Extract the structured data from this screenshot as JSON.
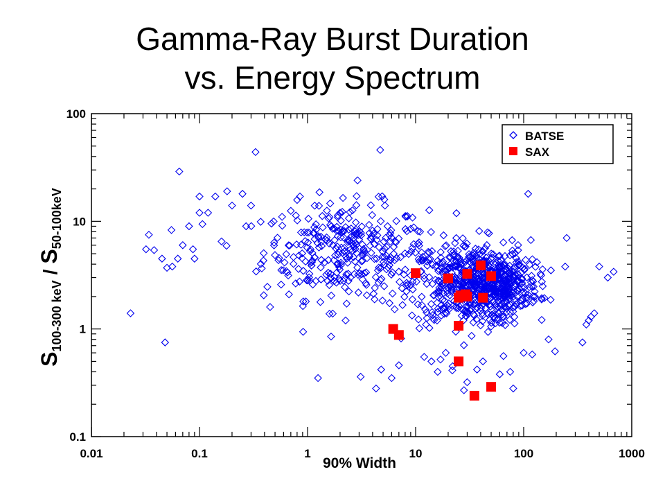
{
  "slide": {
    "title_line1": "Gamma-Ray Burst Duration",
    "title_line2": "vs. Energy Spectrum"
  },
  "chart_data": {
    "type": "scatter",
    "x_scale": "log",
    "y_scale": "log",
    "xlim": [
      0.01,
      1000
    ],
    "ylim": [
      0.1,
      100
    ],
    "xlabel": "90% Width",
    "ylabel": {
      "s1": "S",
      "sub1": "100-300 keV",
      "slash": "/",
      "s2": "S",
      "sub2": "50-100keV"
    },
    "x_ticks": [
      {
        "value": 0.01,
        "label": "0.01"
      },
      {
        "value": 0.1,
        "label": "0.1"
      },
      {
        "value": 1,
        "label": "1"
      },
      {
        "value": 10,
        "label": "10"
      },
      {
        "value": 100,
        "label": "100"
      },
      {
        "value": 1000,
        "label": "1000"
      }
    ],
    "y_ticks": [
      {
        "value": 0.1,
        "label": "0.1"
      },
      {
        "value": 1,
        "label": "1"
      },
      {
        "value": 10,
        "label": "10"
      },
      {
        "value": 100,
        "label": "100"
      }
    ],
    "legend_position": "top-right",
    "series": [
      {
        "name": "BATSE",
        "marker": "open-diamond",
        "color": "#0000ee",
        "x": [
          0.023,
          0.032,
          0.034,
          0.048,
          0.05,
          0.056,
          0.063,
          0.065,
          0.087,
          0.09,
          0.1,
          0.16,
          0.18,
          0.33,
          0.45,
          1.25,
          1.65,
          2.25,
          2.9,
          3.1,
          4.3,
          4.7,
          4.8,
          6.0,
          7.0,
          12,
          14,
          16,
          17,
          19,
          22,
          28,
          30,
          37,
          42,
          60,
          65,
          75,
          80,
          100,
          110,
          120,
          170,
          195,
          350,
          380,
          400,
          420,
          500,
          600,
          680,
          450,
          150,
          250,
          11,
          9,
          6.5,
          0.25,
          0.3,
          0.2,
          0.14,
          0.7,
          2.0,
          5.5,
          0.055,
          0.038,
          0.12,
          0.08,
          0.27,
          0.07,
          0.1,
          0.85,
          5.2,
          0.045
        ],
        "y": [
          1.4,
          5.5,
          7.5,
          0.75,
          3.7,
          3.8,
          4.5,
          29,
          5.5,
          4.5,
          12,
          6.5,
          19,
          44,
          1.6,
          0.35,
          0.85,
          1.2,
          24,
          0.36,
          0.28,
          46,
          0.42,
          0.35,
          0.46,
          0.55,
          0.5,
          0.4,
          0.52,
          0.6,
          0.45,
          0.27,
          0.32,
          0.42,
          0.5,
          0.38,
          0.56,
          0.4,
          0.28,
          0.6,
          18,
          0.58,
          0.8,
          0.62,
          0.75,
          1.1,
          1.2,
          1.3,
          3.8,
          3.0,
          3.4,
          1.4,
          2.5,
          7.0,
          8.0,
          8.5,
          6.5,
          18,
          14,
          14,
          17,
          12.5,
          12,
          9,
          8.3,
          5.4,
          12,
          9,
          9,
          6,
          17,
          17,
          14,
          4.5
        ]
      },
      {
        "name": "SAX",
        "marker": "filled-square",
        "color": "#ff0000",
        "x": [
          6.2,
          7.0,
          10,
          20,
          25,
          25,
          25,
          26,
          29,
          30,
          30,
          35,
          40,
          42,
          50,
          50
        ],
        "y": [
          1.0,
          0.88,
          3.3,
          2.95,
          0.5,
          1.07,
          1.95,
          2.05,
          2.1,
          3.25,
          2.0,
          0.24,
          3.9,
          1.95,
          3.1,
          0.29
        ]
      }
    ]
  }
}
